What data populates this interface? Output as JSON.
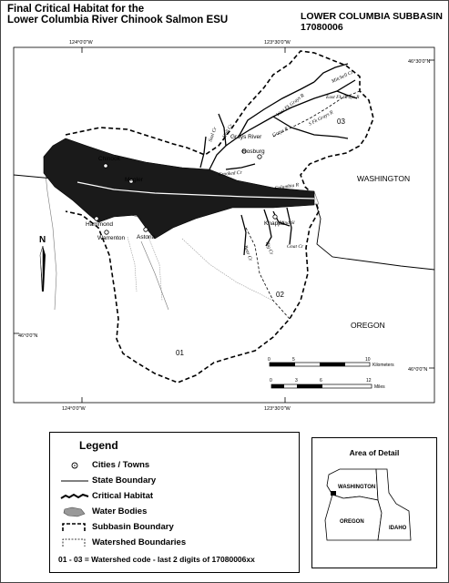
{
  "map": {
    "title_line1": "Final Critical Habitat for the",
    "title_line2": "Lower Columbia River Chinook Salmon ESU",
    "subbasin_name": "LOWER COLUMBIA SUBBASIN",
    "subbasin_code": "17080006",
    "graticule": {
      "top_left_lon": "124°0'0\"W",
      "top_right_lon": "123°30'0\"W",
      "right_top_lat": "46°30'0\"N",
      "left_mid_lat": "46°0'0\"N",
      "right_mid_lat": "46°0'0\"N",
      "bottom_left_lon": "124°0'0\"W",
      "bottom_right_lon": "123°30'0\"W"
    },
    "states": {
      "washington": "WASHINGTON",
      "oregon": "OREGON"
    },
    "towns": [
      "Chinook",
      "Megler",
      "Hammond",
      "Warrenton",
      "Astoria",
      "Knappa",
      "Grays River",
      "Rosburg"
    ],
    "streams": [
      "Columbia R",
      "Crooked Cr",
      "Grays R",
      "Seal Cr",
      "Hull Cr",
      "West Fk Grays R",
      "S Fk Grays R",
      "East Fk Grays R",
      "Mitchell Cr",
      "Big Cr",
      "Bear Cr",
      "Gnat Cr",
      "Blind Sl"
    ],
    "watersheds": [
      "01",
      "02",
      "03"
    ],
    "north_label": "N",
    "scale_km": {
      "ticks": [
        "0",
        "5",
        "10"
      ],
      "unit": "Kilometers"
    },
    "scale_mi": {
      "ticks": [
        "0",
        "3",
        "6",
        "12"
      ],
      "unit": "Miles"
    }
  },
  "legend": {
    "title": "Legend",
    "items": [
      "Cities / Towns",
      "State Boundary",
      "Critical Habitat",
      "Water Bodies",
      "Subbasin Boundary",
      "Watershed Boundaries"
    ],
    "note": "01 - 03 = Watershed code - last 2 digits of 17080006xx"
  },
  "inset": {
    "title": "Area of Detail",
    "states": [
      "WASHINGTON",
      "OREGON",
      "IDAHO"
    ]
  }
}
